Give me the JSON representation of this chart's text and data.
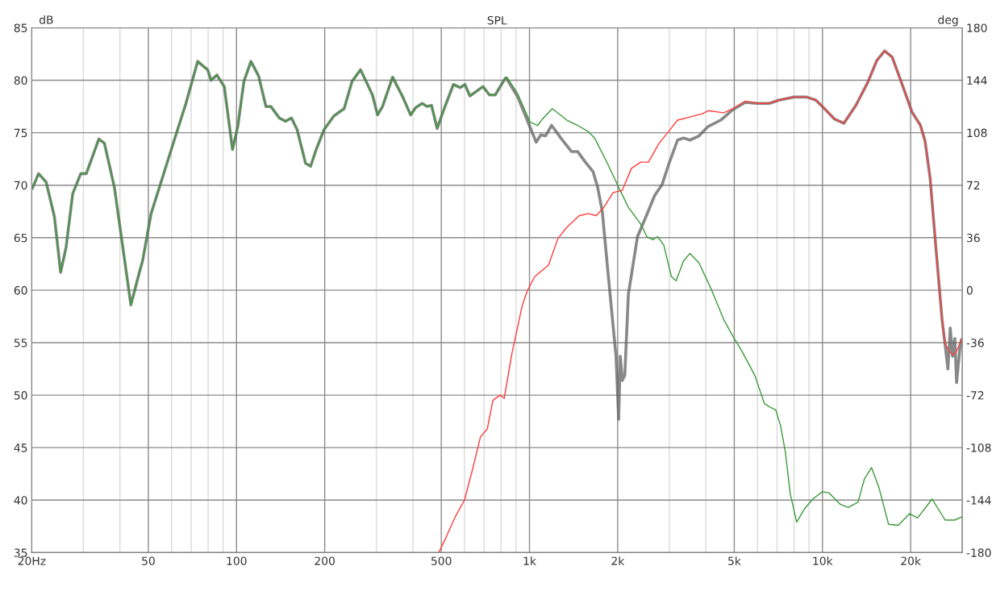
{
  "chart_data": {
    "type": "line",
    "title": "SPL",
    "ylabel": "dB",
    "y2label": "deg",
    "log": "x",
    "grid": true,
    "marker": "none",
    "line_style": "solid",
    "xlim": [
      20,
      30000
    ],
    "ylim": [
      35,
      85
    ],
    "y2lim": [
      -180,
      180
    ],
    "xticks": [
      {
        "value": 20,
        "label": "20Hz"
      },
      {
        "value": 30,
        "label": null
      },
      {
        "value": 40,
        "label": null
      },
      {
        "value": 50,
        "label": "50"
      },
      {
        "value": 60,
        "label": null
      },
      {
        "value": 70,
        "label": null
      },
      {
        "value": 80,
        "label": null
      },
      {
        "value": 90,
        "label": null
      },
      {
        "value": 100,
        "label": "100"
      },
      {
        "value": 200,
        "label": "200"
      },
      {
        "value": 300,
        "label": null
      },
      {
        "value": 400,
        "label": null
      },
      {
        "value": 500,
        "label": "500"
      },
      {
        "value": 600,
        "label": null
      },
      {
        "value": 700,
        "label": null
      },
      {
        "value": 800,
        "label": null
      },
      {
        "value": 900,
        "label": null
      },
      {
        "value": 1000,
        "label": "1k"
      },
      {
        "value": 2000,
        "label": "2k"
      },
      {
        "value": 3000,
        "label": null
      },
      {
        "value": 4000,
        "label": null
      },
      {
        "value": 5000,
        "label": "5k"
      },
      {
        "value": 6000,
        "label": null
      },
      {
        "value": 7000,
        "label": null
      },
      {
        "value": 8000,
        "label": null
      },
      {
        "value": 9000,
        "label": null
      },
      {
        "value": 10000,
        "label": "10k"
      },
      {
        "value": 20000,
        "label": "20k"
      }
    ],
    "yticks": [
      35,
      40,
      45,
      50,
      55,
      60,
      65,
      70,
      75,
      80,
      85
    ],
    "y2ticks": [
      -180,
      -144,
      -108,
      -72,
      -36,
      0,
      36,
      72,
      108,
      144,
      180
    ],
    "series": [
      {
        "color": "#3a9a3a",
        "x": [
          20.1,
          21.1,
          22.4,
          23.9,
          25.1,
          26.2,
          27.6,
          29.4,
          30.7,
          33.9,
          35.4,
          38.3,
          43.6,
          46.6,
          47.8,
          51.1,
          56.0,
          61.3,
          67.2,
          73.7,
          79.7,
          81.8,
          85.7,
          90.8,
          96.9,
          101,
          106,
          112,
          119,
          126,
          131,
          140,
          147,
          154,
          161,
          172,
          179,
          187,
          199,
          215,
          233,
          248,
          265,
          279,
          291,
          303,
          315,
          341,
          368,
          393,
          409,
          430,
          447,
          463,
          484,
          510,
          550,
          580,
          602,
          626,
          694,
          730,
          764,
          827,
          838,
          912,
          1005,
          1067,
          1107,
          1196,
          1342,
          1461,
          1589,
          1668,
          1859,
          2023,
          2175,
          2397,
          2515,
          2638,
          2736,
          2873,
          3050,
          3164,
          3358,
          3527,
          3790,
          4171,
          4602,
          4948,
          5306,
          5873,
          6336,
          6580,
          6924,
          7194,
          7471,
          7763,
          8168,
          8698,
          9268,
          10000,
          10520,
          11500,
          12250,
          13220,
          13900,
          14710,
          15590,
          16810,
          18140,
          19820,
          21120,
          23660,
          26220,
          28270,
          29880
        ],
        "values": [
          69.7,
          71.1,
          70.3,
          67.0,
          61.7,
          64.1,
          69.2,
          71.1,
          71.1,
          74.4,
          74.0,
          69.8,
          58.6,
          61.7,
          62.8,
          67.3,
          70.8,
          74.3,
          77.8,
          81.8,
          81.0,
          80.0,
          80.5,
          79.4,
          73.4,
          75.6,
          79.9,
          81.8,
          80.4,
          77.5,
          77.5,
          76.4,
          76.1,
          76.4,
          75.3,
          72.1,
          71.8,
          73.4,
          75.3,
          76.6,
          77.3,
          79.9,
          81.0,
          79.7,
          78.6,
          76.7,
          77.5,
          80.3,
          78.5,
          76.7,
          77.4,
          77.8,
          77.5,
          77.6,
          75.4,
          77.2,
          79.6,
          79.3,
          79.6,
          78.5,
          79.4,
          78.6,
          78.6,
          80.2,
          80.3,
          78.7,
          76.0,
          75.7,
          76.3,
          77.3,
          76.2,
          75.7,
          75.1,
          74.5,
          71.9,
          69.7,
          67.9,
          66.3,
          65.1,
          64.8,
          65.1,
          64.3,
          61.3,
          60.9,
          62.8,
          63.5,
          62.6,
          60.1,
          57.2,
          55.6,
          54.2,
          51.9,
          49.2,
          48.9,
          48.6,
          47.1,
          44.6,
          40.6,
          37.9,
          39.2,
          40.1,
          40.8,
          40.7,
          39.6,
          39.3,
          39.8,
          42.0,
          43.1,
          41.2,
          37.7,
          37.6,
          38.7,
          38.3,
          40.1,
          38.1,
          38.1,
          38.4
        ]
      },
      {
        "color": "#ff3b3b",
        "x": [
          490,
          520,
          560,
          600,
          640,
          680,
          718,
          750,
          793,
          820,
          870,
          944,
          981,
          1042,
          1162,
          1249,
          1342,
          1478,
          1589,
          1690,
          1795,
          1928,
          2072,
          2228,
          2397,
          2546,
          2770,
          2979,
          3202,
          3527,
          3885,
          4072,
          4602,
          4948,
          5450,
          5982,
          6589,
          7087,
          8013,
          8830,
          9500,
          10240,
          11000,
          11830,
          13000,
          14280,
          15340,
          16300,
          17300,
          18600,
          20200,
          21600,
          22400,
          23300,
          24400,
          25600,
          26200,
          26800,
          27800,
          28700,
          29800
        ],
        "values": [
          35.0,
          36.5,
          38.5,
          40.0,
          43.0,
          46.0,
          46.8,
          49.5,
          50.0,
          49.7,
          53.9,
          58.5,
          59.9,
          61.3,
          62.4,
          64.9,
          66.0,
          67.1,
          67.3,
          67.1,
          67.9,
          69.3,
          69.5,
          71.6,
          72.2,
          72.2,
          74.0,
          75.1,
          76.2,
          76.5,
          76.8,
          77.1,
          76.9,
          77.3,
          78.0,
          77.8,
          77.8,
          78.1,
          78.4,
          78.4,
          78.1,
          77.2,
          76.3,
          75.9,
          77.6,
          79.8,
          81.9,
          82.8,
          82.2,
          79.8,
          77.0,
          75.7,
          74.2,
          70.7,
          64.0,
          57.2,
          54.9,
          54.4,
          53.8,
          54.2,
          55.3
        ]
      },
      {
        "color": "#606060",
        "x": [
          20.1,
          21.1,
          22.4,
          23.9,
          25.1,
          26.2,
          27.6,
          29.4,
          30.7,
          33.9,
          35.4,
          38.3,
          43.6,
          46.6,
          47.8,
          51.1,
          56.0,
          61.3,
          67.2,
          73.7,
          79.7,
          81.8,
          85.7,
          90.8,
          96.9,
          101,
          106,
          112,
          119,
          126,
          131,
          140,
          147,
          154,
          161,
          172,
          179,
          187,
          199,
          215,
          233,
          248,
          265,
          279,
          291,
          303,
          315,
          341,
          368,
          393,
          409,
          430,
          447,
          463,
          484,
          510,
          550,
          580,
          602,
          626,
          694,
          730,
          764,
          827,
          838,
          912,
          969,
          1054,
          1093,
          1134,
          1190,
          1279,
          1392,
          1461,
          1552,
          1648,
          1709,
          1772,
          1859,
          1974,
          2016,
          2041,
          2075,
          2115,
          2175,
          2337,
          2515,
          2672,
          2839,
          2979,
          3202,
          3358,
          3527,
          3790,
          4072,
          4492,
          4948,
          5450,
          5982,
          6589,
          7087,
          8013,
          8830,
          9500,
          10240,
          11000,
          11830,
          13000,
          14280,
          15340,
          16300,
          17300,
          18600,
          20200,
          21600,
          22400,
          23300,
          24400,
          25600,
          26200,
          26800,
          27300,
          27800,
          28300,
          28700,
          29400,
          29800
        ],
        "values": [
          69.7,
          71.1,
          70.3,
          67.0,
          61.7,
          64.1,
          69.2,
          71.1,
          71.1,
          74.4,
          74.0,
          69.8,
          58.6,
          61.7,
          62.8,
          67.3,
          70.8,
          74.3,
          77.8,
          81.8,
          81.0,
          80.0,
          80.5,
          79.4,
          73.4,
          75.6,
          79.9,
          81.8,
          80.4,
          77.5,
          77.5,
          76.4,
          76.1,
          76.4,
          75.3,
          72.1,
          71.8,
          73.4,
          75.3,
          76.6,
          77.3,
          79.9,
          81.0,
          79.7,
          78.6,
          76.7,
          77.5,
          80.3,
          78.5,
          76.7,
          77.4,
          77.8,
          77.5,
          77.6,
          75.4,
          77.2,
          79.6,
          79.3,
          79.6,
          78.5,
          79.4,
          78.6,
          78.6,
          80.2,
          80.1,
          78.4,
          76.6,
          74.1,
          74.8,
          74.7,
          75.7,
          74.5,
          73.2,
          73.2,
          72.2,
          71.3,
          69.8,
          67.5,
          61.3,
          53.7,
          47.7,
          53.7,
          51.4,
          51.9,
          59.6,
          65.1,
          67.2,
          69.0,
          70.1,
          71.9,
          74.3,
          74.5,
          74.3,
          74.7,
          75.6,
          76.2,
          77.2,
          77.9,
          77.8,
          77.8,
          78.1,
          78.4,
          78.4,
          78.1,
          77.2,
          76.3,
          75.9,
          77.6,
          79.8,
          81.9,
          82.8,
          82.2,
          79.8,
          77.0,
          75.7,
          74.2,
          70.7,
          64.0,
          57.2,
          54.9,
          52.5,
          56.4,
          53.7,
          55.4,
          51.2,
          54.3,
          55.3
        ]
      }
    ]
  }
}
